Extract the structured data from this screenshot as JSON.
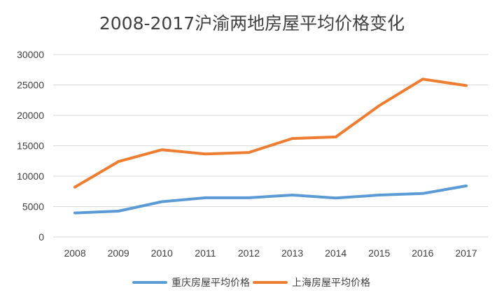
{
  "chart_data": {
    "type": "line",
    "title": "2008-2017沪渝两地房屋平均价格变化",
    "xlabel": "",
    "ylabel": "",
    "categories": [
      "2008",
      "2009",
      "2010",
      "2011",
      "2012",
      "2013",
      "2014",
      "2015",
      "2016",
      "2017"
    ],
    "ylim": [
      0,
      30000
    ],
    "yticks": [
      "0",
      "5000",
      "10000",
      "15000",
      "20000",
      "25000",
      "30000"
    ],
    "grid": true,
    "legend_position": "bottom",
    "series": [
      {
        "name": "重庆房屋平均价格",
        "color": "#5b9bd5",
        "values": [
          3950,
          4250,
          5800,
          6450,
          6450,
          6900,
          6400,
          6900,
          7150,
          8400
        ]
      },
      {
        "name": "上海房屋平均价格",
        "color": "#ed7d31",
        "values": [
          8200,
          12400,
          14350,
          13650,
          13900,
          16200,
          16450,
          21600,
          25950,
          24900
        ]
      }
    ]
  }
}
